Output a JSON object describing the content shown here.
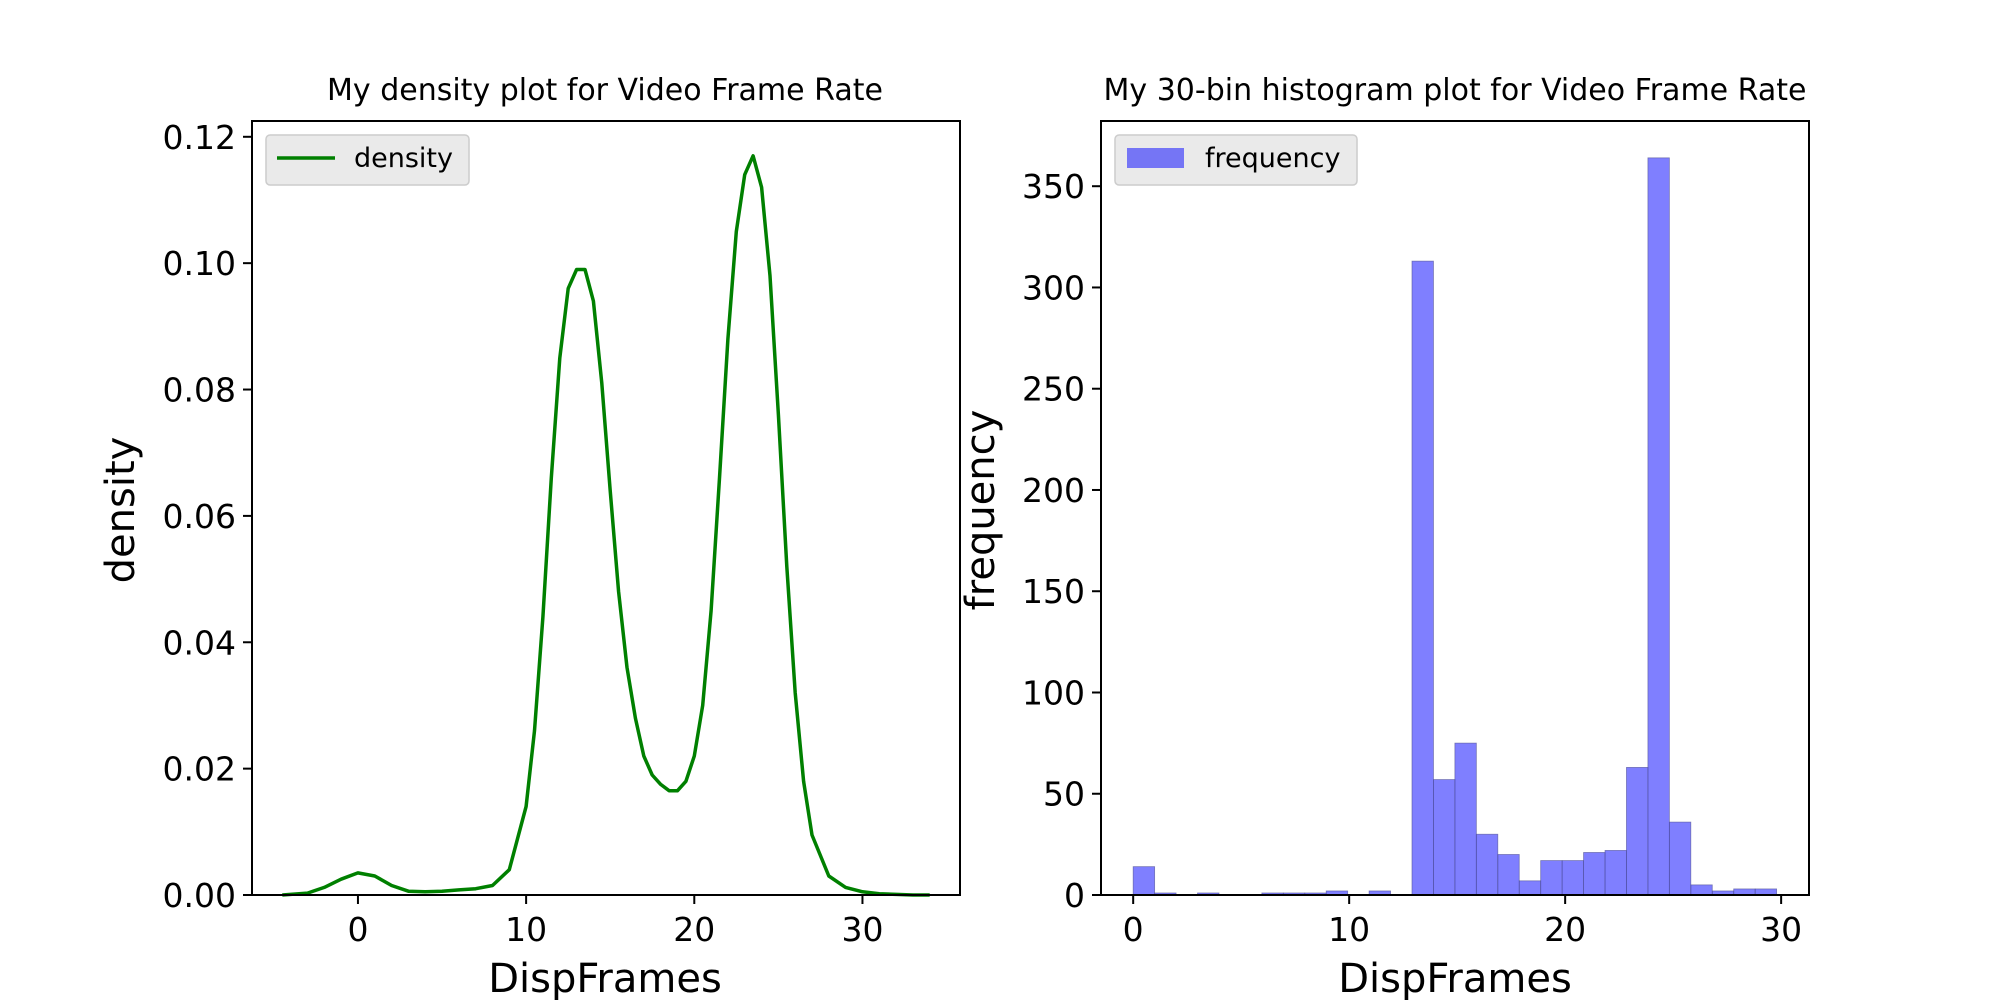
{
  "chart_data": [
    {
      "type": "line",
      "title": "My density plot for Video Frame Rate",
      "xlabel": "DispFrames",
      "ylabel": "density",
      "xlim": [
        -6.3,
        35.8
      ],
      "ylim": [
        0,
        0.1225
      ],
      "xticks": [
        0,
        10,
        20,
        30
      ],
      "yticks": [
        0.0,
        0.02,
        0.04,
        0.06,
        0.08,
        0.1,
        0.12
      ],
      "ytick_labels": [
        "0.00",
        "0.02",
        "0.04",
        "0.06",
        "0.08",
        "0.10",
        "0.12"
      ],
      "legend_position": "top-left",
      "color": "#008000",
      "series": [
        {
          "name": "density",
          "x": [
            -4.5,
            -3,
            -2,
            -1,
            0,
            1,
            2,
            3,
            4,
            5,
            6,
            7,
            8,
            9,
            10,
            10.5,
            11,
            11.5,
            12,
            12.5,
            13,
            13.5,
            14,
            14.5,
            15,
            15.5,
            16,
            16.5,
            17,
            17.5,
            18,
            18.5,
            19,
            19.5,
            20,
            20.5,
            21,
            21.5,
            22,
            22.5,
            23,
            23.5,
            24,
            24.5,
            25,
            25.5,
            26,
            26.5,
            27,
            28,
            29,
            30,
            31,
            32,
            33,
            34
          ],
          "values": [
            0.0,
            0.0003,
            0.0012,
            0.0025,
            0.0035,
            0.003,
            0.0015,
            0.0006,
            0.0005,
            0.0006,
            0.0008,
            0.001,
            0.0015,
            0.004,
            0.014,
            0.026,
            0.044,
            0.066,
            0.085,
            0.096,
            0.099,
            0.099,
            0.094,
            0.081,
            0.064,
            0.048,
            0.036,
            0.028,
            0.022,
            0.019,
            0.0175,
            0.0165,
            0.0165,
            0.018,
            0.022,
            0.03,
            0.045,
            0.066,
            0.088,
            0.105,
            0.114,
            0.117,
            0.112,
            0.098,
            0.076,
            0.052,
            0.032,
            0.018,
            0.0095,
            0.003,
            0.0012,
            0.0005,
            0.0002,
            0.0001,
            0.0,
            0.0
          ]
        }
      ]
    },
    {
      "type": "bar",
      "title": "My 30-bin histogram plot for Video Frame Rate",
      "xlabel": "DispFrames",
      "ylabel": "frequency",
      "xlim": [
        -1.49,
        31.29
      ],
      "ylim": [
        0,
        382.2
      ],
      "xticks": [
        0,
        10,
        20,
        30
      ],
      "yticks": [
        0,
        50,
        100,
        150,
        200,
        250,
        300,
        350
      ],
      "legend_position": "top-left",
      "color": "#0000ff",
      "alpha": 0.5,
      "bin_start": 0,
      "bin_width": 0.993,
      "series": [
        {
          "name": "frequency",
          "values": [
            14,
            1,
            0,
            1,
            0,
            0,
            1,
            1,
            1,
            2,
            0,
            2,
            0,
            313,
            57,
            75,
            30,
            20,
            7,
            17,
            17,
            21,
            22,
            63,
            364,
            36,
            5,
            2,
            3,
            3
          ]
        }
      ]
    }
  ]
}
